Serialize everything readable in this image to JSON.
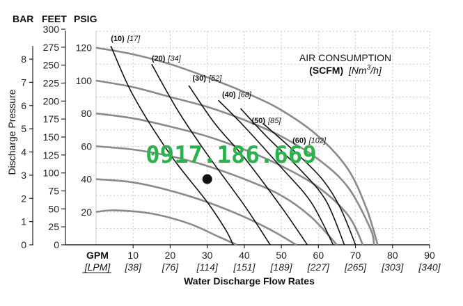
{
  "chart_data": {
    "type": "line",
    "xlabel": "Water Discharge Flow Rates",
    "x_unit_primary": "GPM",
    "x_unit_secondary": "[LPM]",
    "x_ticks": [
      {
        "gpm": "10",
        "lpm": "[38]"
      },
      {
        "gpm": "20",
        "lpm": "[76]"
      },
      {
        "gpm": "30",
        "lpm": "[114]"
      },
      {
        "gpm": "40",
        "lpm": "[151]"
      },
      {
        "gpm": "50",
        "lpm": "[189]"
      },
      {
        "gpm": "60",
        "lpm": "[227]"
      },
      {
        "gpm": "70",
        "lpm": "[265]"
      },
      {
        "gpm": "80",
        "lpm": "[303]"
      },
      {
        "gpm": "90",
        "lpm": "[340]"
      }
    ],
    "xlim": [
      0,
      90
    ],
    "ylabel": "Discharge Pressure",
    "y_headers": {
      "bar": "BAR",
      "feet": "FEET",
      "psig": "PSIG"
    },
    "y_bar_ticks": [
      "0",
      "1",
      "2",
      "3",
      "4",
      "5",
      "6",
      "7",
      "8"
    ],
    "y_feet_ticks": [
      "0",
      "25",
      "50",
      "75",
      "100",
      "125",
      "150",
      "175",
      "200",
      "225",
      "250",
      "275",
      "300"
    ],
    "y_psig_ticks": [
      "20",
      "40",
      "60",
      "80",
      "100",
      "120"
    ],
    "ylim_psig": [
      0,
      130
    ],
    "legend_title": "AIR CONSUMPTION",
    "legend_units_bold": "(SCFM)",
    "legend_units_italic": "[Nm",
    "legend_units_sup": "3",
    "legend_units_tail": "/h]",
    "grid": true,
    "watermark": "0917.186.669",
    "operating_point": {
      "x": 30,
      "y": 40
    },
    "pressure_curves": [
      {
        "values": [
          [
            0,
            20
          ],
          [
            5,
            21
          ],
          [
            15,
            19
          ],
          [
            25,
            13
          ],
          [
            33,
            5
          ],
          [
            38,
            0
          ]
        ]
      },
      {
        "values": [
          [
            0,
            40
          ],
          [
            10,
            38
          ],
          [
            20,
            33
          ],
          [
            30,
            26
          ],
          [
            40,
            17
          ],
          [
            48,
            8
          ],
          [
            54,
            0
          ]
        ]
      },
      {
        "values": [
          [
            0,
            60
          ],
          [
            10,
            58
          ],
          [
            20,
            54
          ],
          [
            30,
            48
          ],
          [
            40,
            40
          ],
          [
            50,
            30
          ],
          [
            58,
            17
          ],
          [
            65,
            0
          ]
        ]
      },
      {
        "values": [
          [
            0,
            80
          ],
          [
            10,
            77
          ],
          [
            20,
            72
          ],
          [
            30,
            66
          ],
          [
            40,
            58
          ],
          [
            50,
            48
          ],
          [
            60,
            35
          ],
          [
            68,
            18
          ],
          [
            72,
            0
          ]
        ]
      },
      {
        "values": [
          [
            0,
            100
          ],
          [
            10,
            96
          ],
          [
            20,
            90
          ],
          [
            30,
            84
          ],
          [
            40,
            76
          ],
          [
            50,
            66
          ],
          [
            60,
            52
          ],
          [
            68,
            35
          ],
          [
            74,
            10
          ],
          [
            75,
            0
          ]
        ]
      },
      {
        "values": [
          [
            0,
            120
          ],
          [
            10,
            116
          ],
          [
            20,
            110
          ],
          [
            30,
            102
          ],
          [
            40,
            93
          ],
          [
            50,
            82
          ],
          [
            60,
            66
          ],
          [
            68,
            46
          ],
          [
            73,
            22
          ],
          [
            76,
            0
          ]
        ]
      }
    ],
    "air_curves": [
      {
        "label": "(10)",
        "label_metric": "[17]",
        "label_pos": [
          4,
          124
        ],
        "values": [
          [
            4,
            121
          ],
          [
            10,
            91
          ],
          [
            20,
            55
          ],
          [
            30,
            26
          ],
          [
            35,
            9
          ],
          [
            37,
            0
          ]
        ]
      },
      {
        "label": "(20)",
        "label_metric": "[34]",
        "label_pos": [
          15,
          112
        ],
        "values": [
          [
            15,
            110
          ],
          [
            22,
            82
          ],
          [
            30,
            55
          ],
          [
            40,
            24
          ],
          [
            47,
            0
          ]
        ]
      },
      {
        "label": "(30)",
        "label_metric": "[52]",
        "label_pos": [
          26,
          100
        ],
        "values": [
          [
            25,
            97
          ],
          [
            32,
            74
          ],
          [
            40,
            53
          ],
          [
            50,
            23
          ],
          [
            57,
            0
          ]
        ]
      },
      {
        "label": "(40)",
        "label_metric": "[68]",
        "label_pos": [
          34,
          90
        ],
        "values": [
          [
            33,
            88
          ],
          [
            40,
            72
          ],
          [
            50,
            47
          ],
          [
            58,
            26
          ],
          [
            64,
            0
          ]
        ]
      },
      {
        "label": "(50)",
        "label_metric": "[85]",
        "label_pos": [
          42,
          74
        ],
        "values": [
          [
            39,
            83
          ],
          [
            46,
            66
          ],
          [
            55,
            46
          ],
          [
            62,
            27
          ],
          [
            67,
            0
          ]
        ]
      },
      {
        "label": "(60)",
        "label_metric": "[102]",
        "label_pos": [
          53,
          62
        ],
        "values": [
          [
            45,
            74
          ],
          [
            53,
            58
          ],
          [
            61,
            40
          ],
          [
            66,
            22
          ],
          [
            70,
            0
          ]
        ]
      }
    ]
  }
}
